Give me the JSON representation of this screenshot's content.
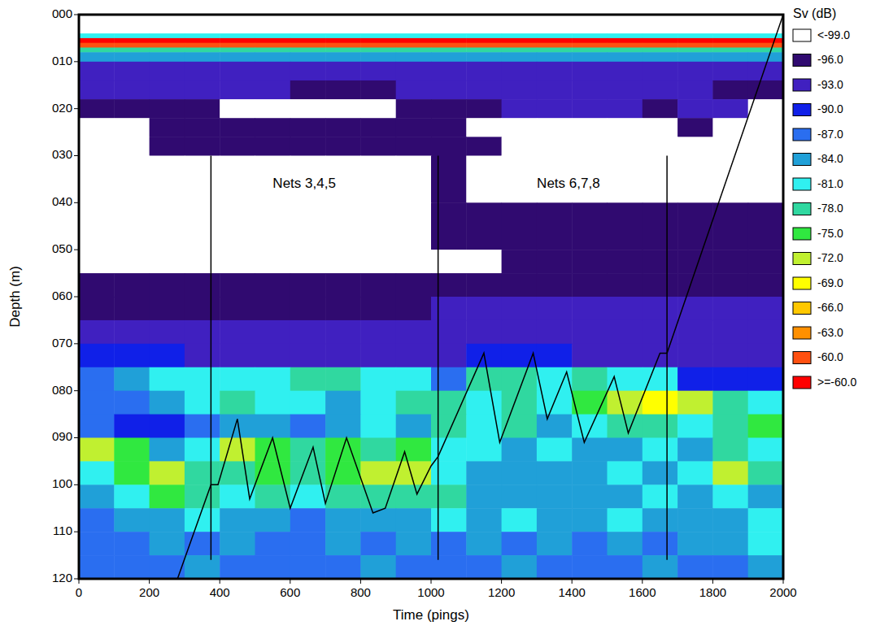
{
  "chart_data": {
    "type": "heatmap",
    "x_label": "Time (pings)",
    "y_label": "Depth (m)",
    "xlim": [
      0,
      2000
    ],
    "ylim": [
      0,
      120
    ],
    "xticks": [
      0,
      200,
      400,
      600,
      800,
      1000,
      1200,
      1400,
      1600,
      1800,
      2000
    ],
    "yticks": [
      {
        "value": 0,
        "label": "000"
      },
      {
        "value": 10,
        "label": "010"
      },
      {
        "value": 20,
        "label": "020"
      },
      {
        "value": 30,
        "label": "030"
      },
      {
        "value": 40,
        "label": "040"
      },
      {
        "value": 50,
        "label": "050"
      },
      {
        "value": 60,
        "label": "060"
      },
      {
        "value": 70,
        "label": "070"
      },
      {
        "value": 80,
        "label": "080"
      },
      {
        "value": 90,
        "label": "090"
      },
      {
        "value": 100,
        "label": "100"
      },
      {
        "value": 110,
        "label": "110"
      },
      {
        "value": 120,
        "label": "120"
      }
    ],
    "x_bins": [
      0,
      100,
      200,
      300,
      400,
      500,
      600,
      700,
      800,
      900,
      1000,
      1100,
      1200,
      1300,
      1400,
      1500,
      1600,
      1700,
      1800,
      1900,
      2000
    ],
    "y_bins": [
      0,
      4,
      5,
      6,
      7,
      8,
      10,
      14,
      18,
      22,
      26,
      30,
      40,
      50,
      55,
      60,
      65,
      70,
      75,
      80,
      85,
      90,
      95,
      100,
      105,
      110,
      115,
      120
    ],
    "cells": [
      [
        -100,
        -100,
        -100,
        -100,
        -100,
        -100,
        -100,
        -100,
        -100,
        -100,
        -100,
        -100,
        -100,
        -100,
        -100,
        -100,
        -100,
        -100,
        -100,
        -100
      ],
      [
        -82,
        -82,
        -82,
        -82,
        -82,
        -82,
        -82,
        -82,
        -82,
        -82,
        -82,
        -82,
        -82,
        -82,
        -82,
        -82,
        -82,
        -82,
        -82,
        -82
      ],
      [
        -57,
        -57,
        -57,
        -57,
        -57,
        -57,
        -57,
        -57,
        -57,
        -57,
        -57,
        -57,
        -57,
        -57,
        -57,
        -57,
        -57,
        -57,
        -57,
        -57
      ],
      [
        -61,
        -61,
        -61,
        -61,
        -61,
        -61,
        -61,
        -61,
        -61,
        -61,
        -61,
        -61,
        -61,
        -61,
        -61,
        -61,
        -61,
        -61,
        -61,
        -61
      ],
      [
        -79,
        -79,
        -79,
        -79,
        -79,
        -79,
        -79,
        -79,
        -79,
        -79,
        -79,
        -79,
        -79,
        -79,
        -79,
        -79,
        -79,
        -79,
        -79,
        -79
      ],
      [
        -85,
        -85,
        -85,
        -85,
        -85,
        -85,
        -85,
        -85,
        -85,
        -85,
        -85,
        -85,
        -85,
        -85,
        -85,
        -85,
        -85,
        -85,
        -85,
        -85
      ],
      [
        -94,
        -94,
        -94,
        -94,
        -94,
        -94,
        -94,
        -94,
        -94,
        -94,
        -94,
        -94,
        -94,
        -94,
        -94,
        -94,
        -94,
        -94,
        -94,
        -94
      ],
      [
        -94,
        -94,
        -94,
        -94,
        -94,
        -94,
        -97,
        -97,
        -97,
        -94,
        -94,
        -94,
        -94,
        -94,
        -94,
        -94,
        -94,
        -94,
        -97,
        -97
      ],
      [
        -97,
        -97,
        -97,
        -97,
        -100,
        -100,
        -100,
        -100,
        -100,
        -97,
        -97,
        -97,
        -94,
        -94,
        -94,
        -94,
        -97,
        -94,
        -94,
        -100
      ],
      [
        -100,
        -100,
        -97,
        -97,
        -97,
        -97,
        -97,
        -97,
        -97,
        -97,
        -97,
        -100,
        -100,
        -100,
        -100,
        -100,
        -100,
        -97,
        -100,
        -100
      ],
      [
        -100,
        -100,
        -97,
        -97,
        -97,
        -97,
        -97,
        -97,
        -97,
        -97,
        -97,
        -97,
        -100,
        -100,
        -100,
        -100,
        -100,
        -100,
        -100,
        -100
      ],
      [
        -100,
        -100,
        -100,
        -100,
        -100,
        -100,
        -100,
        -100,
        -100,
        -100,
        -97,
        -100,
        -100,
        -100,
        -100,
        -100,
        -100,
        -100,
        -100,
        -100
      ],
      [
        -100,
        -100,
        -100,
        -100,
        -100,
        -100,
        -100,
        -100,
        -100,
        -100,
        -97,
        -97,
        -97,
        -97,
        -97,
        -97,
        -97,
        -97,
        -97,
        -97
      ],
      [
        -100,
        -100,
        -100,
        -100,
        -100,
        -100,
        -100,
        -100,
        -100,
        -100,
        -100,
        -100,
        -97,
        -97,
        -97,
        -97,
        -97,
        -97,
        -97,
        -97
      ],
      [
        -97,
        -97,
        -97,
        -97,
        -97,
        -97,
        -97,
        -97,
        -97,
        -97,
        -97,
        -97,
        -97,
        -97,
        -97,
        -97,
        -97,
        -97,
        -97,
        -97
      ],
      [
        -97,
        -97,
        -97,
        -97,
        -97,
        -97,
        -97,
        -97,
        -97,
        -97,
        -94,
        -94,
        -94,
        -94,
        -94,
        -94,
        -94,
        -94,
        -94,
        -94
      ],
      [
        -94,
        -94,
        -94,
        -94,
        -94,
        -94,
        -94,
        -94,
        -94,
        -94,
        -94,
        -94,
        -94,
        -94,
        -94,
        -94,
        -94,
        -94,
        -94,
        -94
      ],
      [
        -91,
        -91,
        -91,
        -94,
        -94,
        -94,
        -94,
        -94,
        -94,
        -94,
        -94,
        -91,
        -91,
        -91,
        -94,
        -94,
        -94,
        -94,
        -94,
        -94
      ],
      [
        -88,
        -85,
        -82,
        -82,
        -82,
        -82,
        -79,
        -79,
        -82,
        -82,
        -88,
        -79,
        -79,
        -82,
        -79,
        -82,
        -82,
        -91,
        -91,
        -91
      ],
      [
        -88,
        -88,
        -85,
        -82,
        -79,
        -82,
        -82,
        -85,
        -82,
        -79,
        -79,
        -82,
        -79,
        -82,
        -76,
        -73,
        -70,
        -73,
        -79,
        -82
      ],
      [
        -88,
        -91,
        -91,
        -88,
        -85,
        -85,
        -88,
        -85,
        -82,
        -85,
        -79,
        -82,
        -79,
        -85,
        -82,
        -79,
        -79,
        -82,
        -79,
        -76
      ],
      [
        -73,
        -76,
        -85,
        -82,
        -73,
        -76,
        -79,
        -76,
        -79,
        -76,
        -82,
        -82,
        -85,
        -82,
        -85,
        -85,
        -82,
        -85,
        -79,
        -82
      ],
      [
        -82,
        -76,
        -73,
        -79,
        -79,
        -76,
        -79,
        -76,
        -73,
        -73,
        -82,
        -85,
        -85,
        -85,
        -85,
        -82,
        -85,
        -82,
        -73,
        -79
      ],
      [
        -85,
        -82,
        -76,
        -79,
        -82,
        -79,
        -82,
        -79,
        -79,
        -79,
        -79,
        -85,
        -85,
        -85,
        -85,
        -85,
        -82,
        -85,
        -82,
        -85
      ],
      [
        -88,
        -85,
        -85,
        -82,
        -85,
        -85,
        -88,
        -85,
        -85,
        -85,
        -82,
        -85,
        -82,
        -85,
        -85,
        -82,
        -85,
        -85,
        -85,
        -82
      ],
      [
        -88,
        -88,
        -85,
        -88,
        -85,
        -88,
        -88,
        -85,
        -88,
        -85,
        -88,
        -85,
        -88,
        -85,
        -88,
        -85,
        -88,
        -85,
        -85,
        -82
      ],
      [
        -88,
        -88,
        -88,
        -85,
        -88,
        -88,
        -88,
        -88,
        -85,
        -88,
        -88,
        -88,
        -85,
        -88,
        -88,
        -88,
        -85,
        -88,
        -88,
        -85
      ]
    ],
    "colorbar": {
      "label": "Sv (dB)",
      "ticks": [
        {
          "value": -99,
          "label": "<-99.0"
        },
        {
          "value": -96,
          "label": "-96.0"
        },
        {
          "value": -93,
          "label": "-93.0"
        },
        {
          "value": -90,
          "label": "-90.0"
        },
        {
          "value": -87,
          "label": "-87.0"
        },
        {
          "value": -84,
          "label": "-84.0"
        },
        {
          "value": -81,
          "label": "-81.0"
        },
        {
          "value": -78,
          "label": "-78.0"
        },
        {
          "value": -75,
          "label": "-75.0"
        },
        {
          "value": -72,
          "label": "-72.0"
        },
        {
          "value": -69,
          "label": "-69.0"
        },
        {
          "value": -66,
          "label": "-66.0"
        },
        {
          "value": -63,
          "label": "-63.0"
        },
        {
          "value": -60,
          "label": "-60.0"
        },
        {
          "value": -60,
          "label": ">=-60.0"
        }
      ],
      "colors": [
        "#ffffff",
        "#300a70",
        "#4020c0",
        "#1020e8",
        "#2a6ef0",
        "#20a0d8",
        "#30f0f0",
        "#30d8a0",
        "#30e840",
        "#c0f030",
        "#ffff00",
        "#ffc800",
        "#ff9000",
        "#ff5010",
        "#ff0000"
      ]
    },
    "track": {
      "x": [
        280,
        375,
        395,
        450,
        485,
        550,
        600,
        665,
        700,
        760,
        835,
        870,
        925,
        960,
        1000,
        1020,
        1150,
        1195,
        1290,
        1330,
        1385,
        1435,
        1520,
        1560,
        1650,
        1670,
        2000
      ],
      "y": [
        120,
        100,
        100,
        86,
        103,
        90,
        105,
        92,
        104,
        90,
        106,
        105,
        93,
        102,
        96,
        94,
        72,
        91,
        72,
        86,
        76,
        91,
        77,
        89,
        72,
        72,
        0
      ]
    },
    "net_lines": [
      {
        "x": 375,
        "y_top": 30,
        "y_bottom": 116
      },
      {
        "x": 1020,
        "y_top": 30,
        "y_bottom": 116
      },
      {
        "x": 1670,
        "y_top": 30,
        "y_bottom": 116
      }
    ],
    "annotations": [
      {
        "text": "Nets 3,4,5",
        "x": 640,
        "y": 36
      },
      {
        "text": "Nets 6,7,8",
        "x": 1390,
        "y": 36
      }
    ]
  }
}
